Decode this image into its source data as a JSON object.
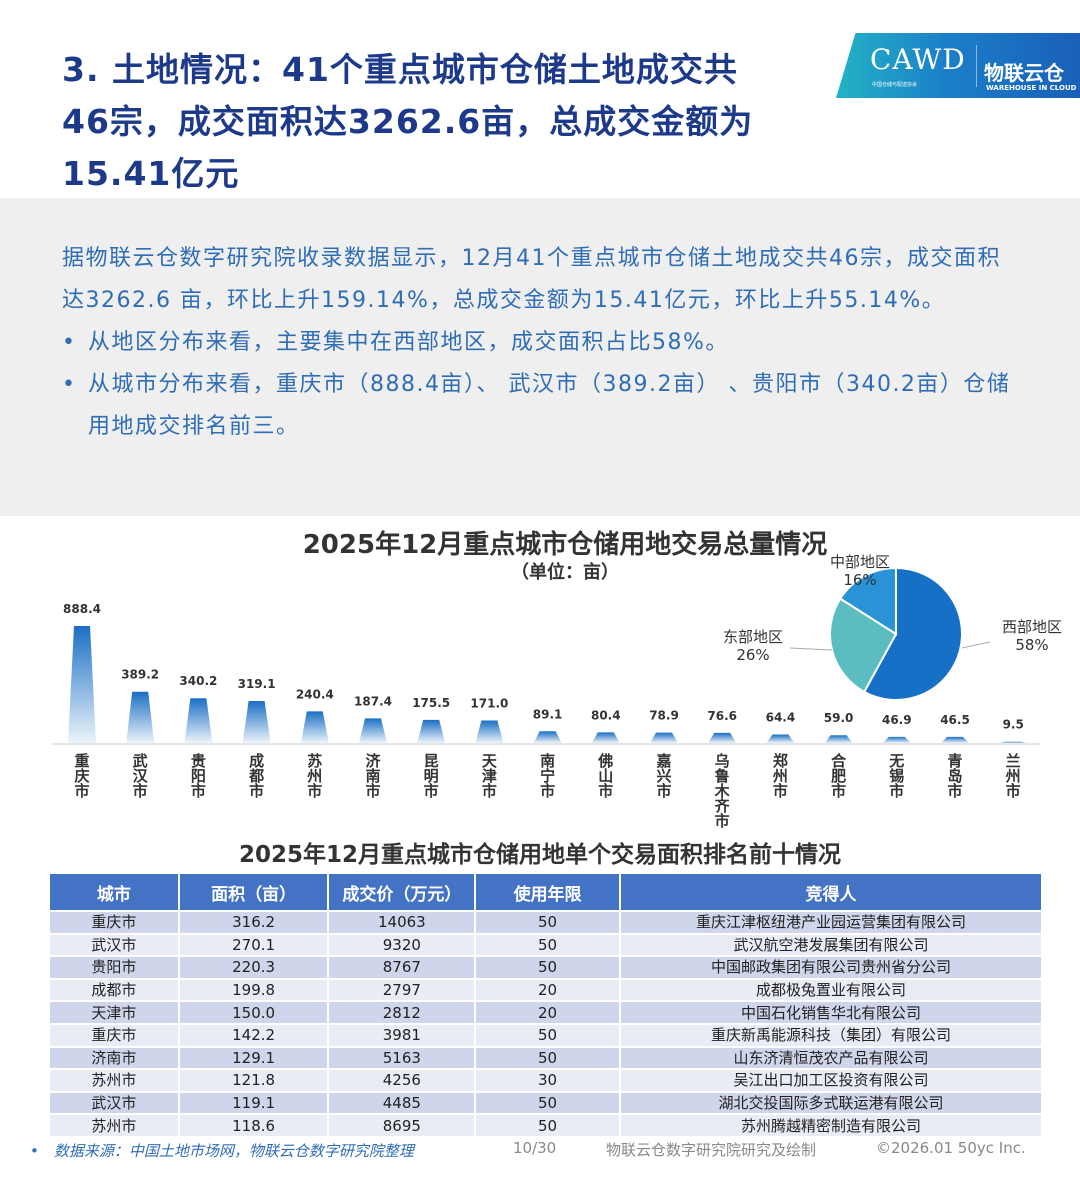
{
  "title": "3. 土地情况：41个重点城市仓储土地成交共46宗，成交面积达3262.6亩，总成交金额为15.41亿元",
  "logo": {
    "main": "CAWD",
    "sub": "中国仓储与配送协会",
    "brand": "物联云仓",
    "brand_en": "WAREHOUSE IN CLOUD"
  },
  "summary": {
    "paragraph": "据物联云仓数字研究院收录数据显示，12月41个重点城市仓储土地成交共46宗，成交面积达3262.6 亩，环比上升159.14%，总成交金额为15.41亿元，环比上升55.14%。",
    "bullets": [
      "从地区分布来看，主要集中在西部地区，成交面积占比58%。",
      "从城市分布来看，重庆市（888.4亩）、 武汉市（389.2亩） 、贵阳市（340.2亩）仓储用地成交排名前三。"
    ]
  },
  "chart_data": [
    {
      "type": "bar",
      "title": "2025年12月重点城市仓储用地交易总量情况",
      "subtitle": "（单位：亩）",
      "categories": [
        "重庆市",
        "武汉市",
        "贵阳市",
        "成都市",
        "苏州市",
        "济南市",
        "昆明市",
        "天津市",
        "南宁市",
        "佛山市",
        "嘉兴市",
        "乌鲁木齐市",
        "郑州市",
        "合肥市",
        "无锡市",
        "青岛市",
        "兰州市"
      ],
      "values": [
        888.4,
        389.2,
        340.2,
        319.1,
        240.4,
        187.4,
        175.5,
        171.0,
        89.1,
        80.4,
        78.9,
        76.6,
        64.4,
        59.0,
        46.9,
        46.5,
        9.5
      ],
      "value_labels": [
        "888.4",
        "389.2",
        "340.2",
        "319.1",
        "240.4",
        "187.4",
        "175.5",
        "171.0",
        "89.1",
        "80.4",
        "78.9",
        "76.6",
        "64.4",
        "59.0",
        "46.9",
        "46.5",
        "9.5"
      ],
      "color": "#1a6fc4"
    },
    {
      "type": "pie",
      "slices": [
        {
          "name": "西部地区",
          "value": 58,
          "label": "58%",
          "color": "#1570c6"
        },
        {
          "name": "东部地区",
          "value": 26,
          "label": "26%",
          "color": "#5bbdc0"
        },
        {
          "name": "中部地区",
          "value": 16,
          "label": "16%",
          "color": "#2a92d6"
        }
      ]
    }
  ],
  "table": {
    "title": "2025年12月重点城市仓储用地单个交易面积排名前十情况",
    "headers": [
      "城市",
      "面积（亩）",
      "成交价（万元）",
      "使用年限",
      "竞得人"
    ],
    "rows": [
      [
        "重庆市",
        "316.2",
        "14063",
        "50",
        "重庆江津枢纽港产业园运营集团有限公司"
      ],
      [
        "武汉市",
        "270.1",
        "9320",
        "50",
        "武汉航空港发展集团有限公司"
      ],
      [
        "贵阳市",
        "220.3",
        "8767",
        "50",
        "中国邮政集团有限公司贵州省分公司"
      ],
      [
        "成都市",
        "199.8",
        "2797",
        "20",
        "成都极兔置业有限公司"
      ],
      [
        "天津市",
        "150.0",
        "2812",
        "20",
        "中国石化销售华北有限公司"
      ],
      [
        "重庆市",
        "142.2",
        "3981",
        "50",
        "重庆新禹能源科技（集团）有限公司"
      ],
      [
        "济南市",
        "129.1",
        "5163",
        "50",
        "山东济清恒茂农产品有限公司"
      ],
      [
        "苏州市",
        "121.8",
        "4256",
        "30",
        "吴江出口加工区投资有限公司"
      ],
      [
        "武汉市",
        "119.1",
        "4485",
        "50",
        "湖北交投国际多式联运港有限公司"
      ],
      [
        "苏州市",
        "118.6",
        "8695",
        "50",
        "苏州腾越精密制造有限公司"
      ]
    ]
  },
  "footer": {
    "source": "•　数据来源：中国土地市场网，物联云仓数字研究院整理",
    "page": "10/30",
    "credit": "物联云仓数字研究院研究及绘制",
    "copyright": "©2026.01 50yc Inc."
  }
}
